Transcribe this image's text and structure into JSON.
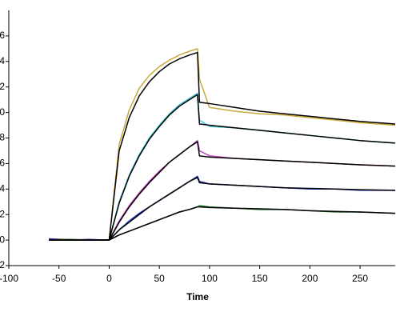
{
  "chart_data": {
    "type": "line",
    "x_label": "Time",
    "x": [
      -60,
      -40,
      -20,
      0,
      10,
      20,
      30,
      40,
      50,
      60,
      70,
      80,
      88,
      90,
      100,
      125,
      150,
      175,
      200,
      225,
      250,
      285
    ],
    "xlim": [
      -100,
      285
    ],
    "xticks": [
      -100,
      -50,
      0,
      50,
      100,
      150,
      200,
      250
    ],
    "ylim": [
      -2,
      18
    ],
    "yticks": [
      -2,
      0,
      2,
      4,
      6,
      8,
      10,
      12,
      14,
      16
    ],
    "series": [
      {
        "color": "#c8a83a",
        "values": [
          0.1,
          0.05,
          0,
          0,
          7.5,
          10.2,
          11.9,
          12.9,
          13.6,
          14.1,
          14.5,
          14.8,
          15.0,
          12.6,
          10.4,
          10.1,
          9.9,
          9.8,
          9.6,
          9.4,
          9.2,
          9.0
        ]
      },
      {
        "color": "#3cc8d8",
        "values": [
          0.05,
          0,
          0.02,
          0,
          3.0,
          5.1,
          6.7,
          8.0,
          9.0,
          9.9,
          10.6,
          11.1,
          11.5,
          9.4,
          8.9,
          8.8,
          8.6,
          8.4,
          8.2,
          8.0,
          7.8,
          7.6
        ]
      },
      {
        "color": "#c040c0",
        "values": [
          0,
          0.05,
          0,
          0,
          1.5,
          2.7,
          3.7,
          4.6,
          5.4,
          6.1,
          6.7,
          7.3,
          7.8,
          7.0,
          6.6,
          6.4,
          6.3,
          6.2,
          6.1,
          6.0,
          5.9,
          5.8
        ]
      },
      {
        "color": "#2030c0",
        "values": [
          0.1,
          0,
          0.05,
          0,
          0.8,
          1.5,
          2.1,
          2.6,
          3.1,
          3.6,
          4.1,
          4.6,
          5.0,
          4.6,
          4.4,
          4.3,
          4.2,
          4.1,
          4.0,
          4.0,
          3.9,
          3.9
        ]
      },
      {
        "color": "#208030",
        "values": [
          0,
          0.05,
          0,
          0,
          0.4,
          0.7,
          1.0,
          1.3,
          1.6,
          1.9,
          2.2,
          2.4,
          2.6,
          2.7,
          2.6,
          2.5,
          2.4,
          2.4,
          2.3,
          2.2,
          2.2,
          2.1
        ]
      },
      {
        "color": "#000000",
        "values": [
          0,
          0,
          0,
          0,
          7.0,
          9.6,
          11.3,
          12.4,
          13.2,
          13.8,
          14.2,
          14.5,
          14.7,
          10.8,
          10.7,
          10.4,
          10.1,
          9.9,
          9.7,
          9.5,
          9.3,
          9.1
        ]
      },
      {
        "color": "#000000",
        "values": [
          0,
          0,
          0,
          0,
          2.9,
          5.0,
          6.6,
          7.9,
          8.9,
          9.8,
          10.5,
          11.0,
          11.4,
          9.1,
          9.0,
          8.8,
          8.6,
          8.4,
          8.2,
          8.0,
          7.8,
          7.6
        ]
      },
      {
        "color": "#000000",
        "values": [
          0,
          0,
          0,
          0,
          1.4,
          2.6,
          3.6,
          4.5,
          5.3,
          6.1,
          6.7,
          7.3,
          7.7,
          6.6,
          6.5,
          6.4,
          6.3,
          6.2,
          6.1,
          6.0,
          5.9,
          5.8
        ]
      },
      {
        "color": "#000000",
        "values": [
          0,
          0,
          0,
          0,
          0.8,
          1.4,
          2.0,
          2.6,
          3.1,
          3.6,
          4.1,
          4.6,
          4.9,
          4.5,
          4.4,
          4.3,
          4.2,
          4.1,
          4.05,
          4.0,
          3.95,
          3.9
        ]
      },
      {
        "color": "#000000",
        "values": [
          0,
          0,
          0,
          0,
          0.4,
          0.7,
          1.0,
          1.3,
          1.6,
          1.9,
          2.2,
          2.4,
          2.6,
          2.6,
          2.55,
          2.5,
          2.45,
          2.4,
          2.3,
          2.25,
          2.2,
          2.1
        ]
      }
    ]
  }
}
